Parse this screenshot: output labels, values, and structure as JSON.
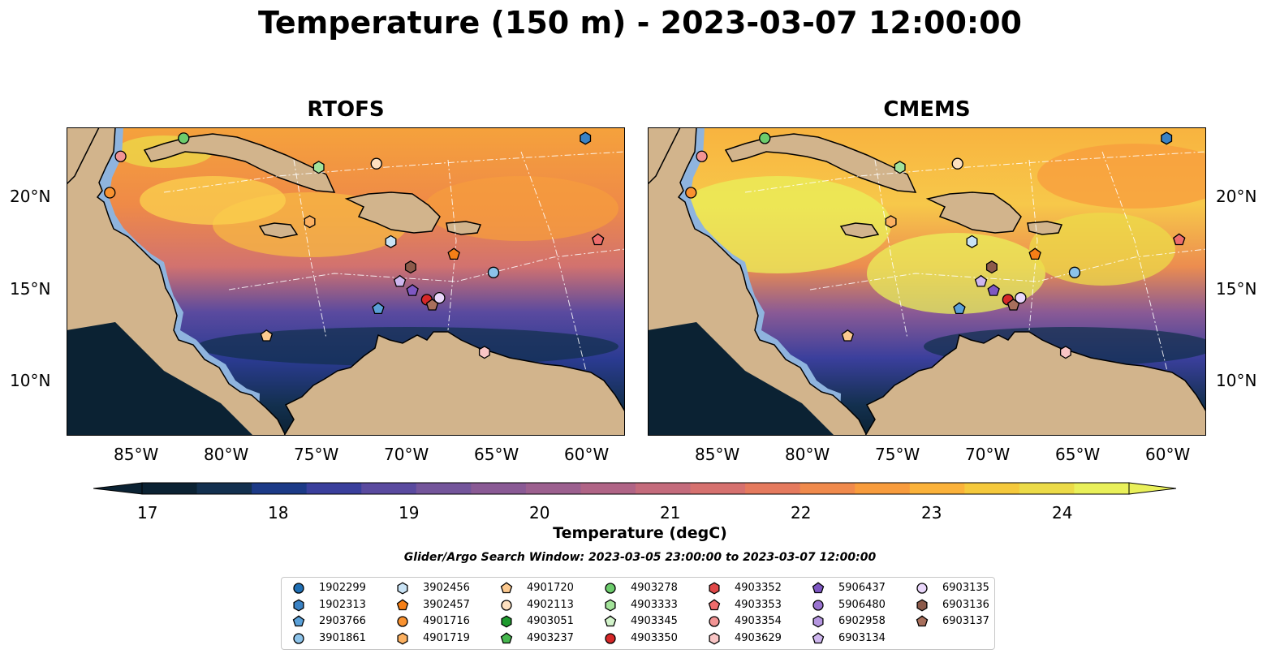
{
  "title": "Temperature (150 m) - 2023-03-07 12:00:00",
  "panels": [
    {
      "title": "RTOFS"
    },
    {
      "title": "CMEMS"
    }
  ],
  "x_ticks": [
    "85°W",
    "80°W",
    "75°W",
    "70°W",
    "65°W",
    "60°W"
  ],
  "y_ticks": [
    "20°N",
    "15°N",
    "10°N"
  ],
  "colorbar": {
    "label": "Temperature (degC)",
    "ticks": [
      "17",
      "18",
      "19",
      "20",
      "21",
      "22",
      "23",
      "24"
    ],
    "colors": [
      "#0b2233",
      "#13304f",
      "#1c3a87",
      "#3a3f9c",
      "#5a4a9f",
      "#74559b",
      "#8a5a95",
      "#9c608f",
      "#b06486",
      "#c46b7c",
      "#d6716f",
      "#e57a5e",
      "#f08a4c",
      "#f89c3d",
      "#fbb23a",
      "#f5c93c",
      "#ecdb48",
      "#e9f05a"
    ],
    "units": "degC"
  },
  "search_window": "Glider/Argo Search Window: 2023-03-05 23:00:00 to 2023-03-07 12:00:00",
  "legend": [
    {
      "id": "1902299",
      "marker": "circle",
      "color": "#1f6fb4"
    },
    {
      "id": "1902313",
      "marker": "hexagon",
      "color": "#3a82c4"
    },
    {
      "id": "2903766",
      "marker": "pentagon",
      "color": "#5aa0d8"
    },
    {
      "id": "3901861",
      "marker": "circle",
      "color": "#8cc3ea"
    },
    {
      "id": "3902456",
      "marker": "hexagon",
      "color": "#c9e3f5"
    },
    {
      "id": "3902457",
      "marker": "pentagon",
      "color": "#f57f17"
    },
    {
      "id": "4901716",
      "marker": "circle",
      "color": "#f99230"
    },
    {
      "id": "4901719",
      "marker": "hexagon",
      "color": "#fbb060"
    },
    {
      "id": "4901720",
      "marker": "pentagon",
      "color": "#fcc98f"
    },
    {
      "id": "4902113",
      "marker": "circle",
      "color": "#fde0c0"
    },
    {
      "id": "4903051",
      "marker": "hexagon",
      "color": "#1e9a2e"
    },
    {
      "id": "4903237",
      "marker": "pentagon",
      "color": "#47b84f"
    },
    {
      "id": "4903278",
      "marker": "circle",
      "color": "#6ccc6c"
    },
    {
      "id": "4903333",
      "marker": "hexagon",
      "color": "#a3e39a"
    },
    {
      "id": "4903345",
      "marker": "pentagon",
      "color": "#d2f3ca"
    },
    {
      "id": "4903350",
      "marker": "circle",
      "color": "#d62728"
    },
    {
      "id": "4903352",
      "marker": "hexagon",
      "color": "#e04848"
    },
    {
      "id": "4903353",
      "marker": "pentagon",
      "color": "#ee6c6c"
    },
    {
      "id": "4903354",
      "marker": "circle",
      "color": "#f29494"
    },
    {
      "id": "4903629",
      "marker": "hexagon",
      "color": "#f9c5c5"
    },
    {
      "id": "5906437",
      "marker": "pentagon",
      "color": "#7e57c2"
    },
    {
      "id": "5906480",
      "marker": "circle",
      "color": "#9a74d0"
    },
    {
      "id": "6902958",
      "marker": "hexagon",
      "color": "#b596e0"
    },
    {
      "id": "6903134",
      "marker": "pentagon",
      "color": "#ceb6ee"
    },
    {
      "id": "6903135",
      "marker": "circle",
      "color": "#ead7fb"
    },
    {
      "id": "6903136",
      "marker": "hexagon",
      "color": "#8c5a4a"
    },
    {
      "id": "6903137",
      "marker": "pentagon",
      "color": "#a86f5c"
    }
  ],
  "map": {
    "lon_range": [
      -89,
      -58
    ],
    "lat_range": [
      7,
      24
    ],
    "colors": {
      "land": "#d2b48c",
      "shelf": "#8fb4de",
      "coast": "#000000"
    },
    "floats": [
      {
        "id": "1902313",
        "lon": -60.2,
        "lat": 23.4
      },
      {
        "id": "4903278",
        "lon": -82.5,
        "lat": 23.4
      },
      {
        "id": "4903354",
        "lon": -86.0,
        "lat": 22.4
      },
      {
        "id": "4903333",
        "lon": -75.0,
        "lat": 21.8
      },
      {
        "id": "4902113",
        "lon": -71.8,
        "lat": 22.0
      },
      {
        "id": "4901716",
        "lon": -86.6,
        "lat": 20.4
      },
      {
        "id": "4901719",
        "lon": -75.5,
        "lat": 18.8
      },
      {
        "id": "3902456",
        "lon": -71.0,
        "lat": 17.7
      },
      {
        "id": "4903353",
        "lon": -59.5,
        "lat": 17.8
      },
      {
        "id": "3902457",
        "lon": -67.5,
        "lat": 17.0
      },
      {
        "id": "6903136",
        "lon": -69.9,
        "lat": 16.3
      },
      {
        "id": "3901861",
        "lon": -65.3,
        "lat": 16.0
      },
      {
        "id": "6903134",
        "lon": -70.5,
        "lat": 15.5
      },
      {
        "id": "5906437",
        "lon": -69.8,
        "lat": 15.0
      },
      {
        "id": "2903766",
        "lon": -71.7,
        "lat": 14.0
      },
      {
        "id": "4903350",
        "lon": -69.0,
        "lat": 14.5
      },
      {
        "id": "6903135",
        "lon": -68.3,
        "lat": 14.6
      },
      {
        "id": "6903137",
        "lon": -68.7,
        "lat": 14.2
      },
      {
        "id": "4901720",
        "lon": -77.9,
        "lat": 12.5
      },
      {
        "id": "4903629",
        "lon": -65.8,
        "lat": 11.6
      }
    ]
  }
}
